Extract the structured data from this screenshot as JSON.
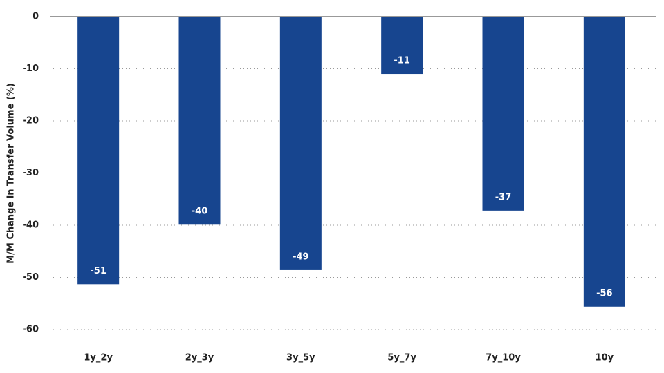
{
  "chart_data": {
    "type": "bar",
    "y_label": "M/M Change in Transfer Volume (%)",
    "categories": [
      "1y_2y",
      "2y_3y",
      "3y_5y",
      "5y_7y",
      "7y_10y",
      "10y"
    ],
    "values": [
      -51.3,
      -39.9,
      -48.6,
      -11,
      -37.2,
      -55.6
    ],
    "value_labels": [
      "-51",
      "-40",
      "-49",
      "-11",
      "-37",
      "-56"
    ],
    "color": "#17458f",
    "ylim": [
      -60,
      0
    ],
    "yticks": [
      0,
      -10,
      -20,
      -30,
      -40,
      -50,
      -60
    ],
    "grid": true
  }
}
